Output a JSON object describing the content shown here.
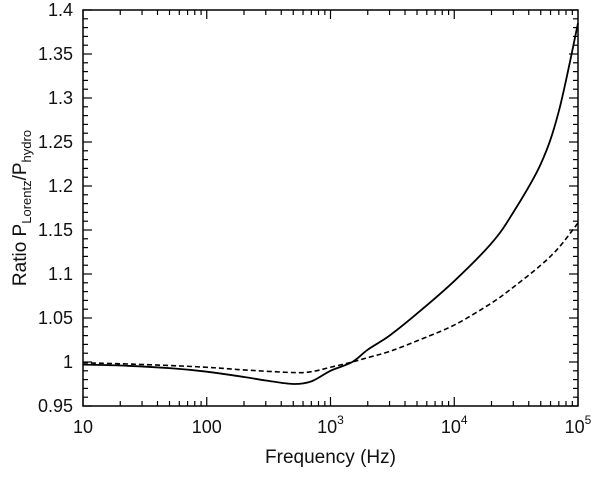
{
  "chart_data": {
    "type": "line",
    "xlabel": "Frequency (Hz)",
    "ylabel": {
      "prefix": "Ratio P",
      "sub1": "Lorentz",
      "slash": "/P",
      "sub2": "hydro"
    },
    "x_scale": "log",
    "xlim": [
      10,
      100000
    ],
    "ylim": [
      0.95,
      1.4
    ],
    "x_ticks": [
      {
        "value": 10,
        "base": "10",
        "exp": ""
      },
      {
        "value": 100,
        "base": "100",
        "exp": ""
      },
      {
        "value": 1000,
        "base": "10",
        "exp": "3"
      },
      {
        "value": 10000,
        "base": "10",
        "exp": "4"
      },
      {
        "value": 100000,
        "base": "10",
        "exp": "5"
      }
    ],
    "y_ticks": [
      {
        "value": 0.95,
        "label": "0.95"
      },
      {
        "value": 1.0,
        "label": "1"
      },
      {
        "value": 1.05,
        "label": "1.05"
      },
      {
        "value": 1.1,
        "label": "1.1"
      },
      {
        "value": 1.15,
        "label": "1.15"
      },
      {
        "value": 1.2,
        "label": "1.2"
      },
      {
        "value": 1.25,
        "label": "1.25"
      },
      {
        "value": 1.3,
        "label": "1.3"
      },
      {
        "value": 1.35,
        "label": "1.35"
      },
      {
        "value": 1.4,
        "label": "1.4"
      }
    ],
    "grid": false,
    "legend": "none",
    "series": [
      {
        "style": "solid",
        "color": "#000000",
        "x": [
          10,
          20,
          50,
          100,
          200,
          300,
          500,
          700,
          1000,
          1500,
          2000,
          3000,
          5000,
          10000,
          20000,
          30000,
          50000,
          70000,
          100000
        ],
        "y": [
          0.997,
          0.996,
          0.993,
          0.989,
          0.983,
          0.979,
          0.975,
          0.978,
          0.99,
          1.0,
          1.014,
          1.03,
          1.055,
          1.092,
          1.135,
          1.17,
          1.225,
          1.285,
          1.385
        ]
      },
      {
        "style": "dashed",
        "color": "#000000",
        "x": [
          10,
          20,
          50,
          100,
          200,
          500,
          700,
          1000,
          1500,
          2000,
          3000,
          5000,
          10000,
          20000,
          30000,
          50000,
          70000,
          100000
        ],
        "y": [
          0.999,
          0.998,
          0.996,
          0.994,
          0.991,
          0.988,
          0.989,
          0.994,
          1.0,
          1.005,
          1.012,
          1.024,
          1.042,
          1.067,
          1.085,
          1.11,
          1.13,
          1.158
        ]
      }
    ]
  }
}
